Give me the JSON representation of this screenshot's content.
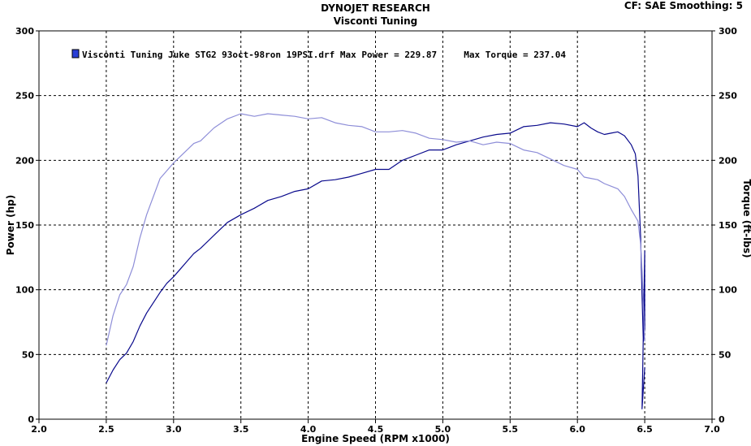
{
  "header": {
    "title": "DYNOJET RESEARCH",
    "subtitle": "Visconti Tuning",
    "settings": "CF: SAE   Smoothing: 5"
  },
  "chart_data": {
    "type": "line",
    "xlabel": "Engine Speed (RPM x1000)",
    "ylabel": "Power (hp)",
    "y2label": "Torque (ft-lbs)",
    "xlim": [
      2.0,
      7.0
    ],
    "ylim": [
      0,
      300
    ],
    "y2lim": [
      0,
      300
    ],
    "x_ticks": [
      "2.0",
      "2.5",
      "3.0",
      "3.5",
      "4.0",
      "4.5",
      "5.0",
      "5.5",
      "6.0",
      "6.5",
      "7.0"
    ],
    "y_ticks": [
      "0",
      "50",
      "100",
      "150",
      "200",
      "250",
      "300"
    ],
    "grid": true,
    "legend": {
      "text": "Visconti Tuning Juke STG2 93oct-98ron 19PSI.drf Max Power = 229.87     Max Torque = 237.04",
      "placement": "top-left",
      "swatch_color": "#2a3fd6"
    },
    "series": [
      {
        "key": "power",
        "color": "#0a0a8c",
        "axis": "left",
        "x": [
          2.5,
          2.55,
          2.6,
          2.65,
          2.7,
          2.75,
          2.8,
          2.9,
          2.95,
          3.0,
          3.05,
          3.1,
          3.15,
          3.2,
          3.3,
          3.4,
          3.5,
          3.6,
          3.7,
          3.8,
          3.9,
          4.0,
          4.1,
          4.2,
          4.3,
          4.4,
          4.5,
          4.6,
          4.7,
          4.8,
          4.9,
          5.0,
          5.1,
          5.2,
          5.3,
          5.4,
          5.5,
          5.6,
          5.7,
          5.8,
          5.9,
          6.0,
          6.05,
          6.1,
          6.15,
          6.2,
          6.25,
          6.3,
          6.35,
          6.4,
          6.43,
          6.45,
          6.47,
          6.48,
          6.49,
          6.5,
          6.5,
          6.48,
          6.5
        ],
        "values": [
          28,
          38,
          46,
          51,
          60,
          72,
          82,
          98,
          105,
          110,
          116,
          122,
          128,
          132,
          142,
          152,
          158,
          163,
          169,
          172,
          176,
          178,
          184,
          185,
          187,
          190,
          193,
          193,
          200,
          204,
          208,
          208,
          212,
          215,
          218,
          220,
          221,
          226,
          227,
          229,
          228,
          226,
          229,
          225,
          222,
          220,
          221,
          222,
          219,
          212,
          205,
          188,
          140,
          95,
          60,
          70,
          130,
          8,
          40
        ]
      },
      {
        "key": "torque",
        "color": "#8e8ed8",
        "axis": "right",
        "x": [
          2.5,
          2.55,
          2.6,
          2.65,
          2.7,
          2.75,
          2.8,
          2.85,
          2.9,
          2.95,
          3.0,
          3.05,
          3.1,
          3.15,
          3.2,
          3.3,
          3.4,
          3.5,
          3.6,
          3.7,
          3.8,
          3.9,
          4.0,
          4.1,
          4.2,
          4.3,
          4.4,
          4.5,
          4.6,
          4.7,
          4.8,
          4.9,
          5.0,
          5.1,
          5.2,
          5.3,
          5.4,
          5.5,
          5.6,
          5.7,
          5.8,
          5.9,
          6.0,
          6.05,
          6.1,
          6.15,
          6.2,
          6.25,
          6.3,
          6.35,
          6.4,
          6.45,
          6.47,
          6.48,
          6.49,
          6.5
        ],
        "values": [
          57,
          80,
          96,
          104,
          118,
          140,
          158,
          172,
          186,
          192,
          198,
          203,
          208,
          213,
          215,
          225,
          232,
          236,
          234,
          236,
          235,
          234,
          232,
          233,
          229,
          227,
          226,
          222,
          222,
          223,
          221,
          217,
          216,
          214,
          215,
          212,
          214,
          213,
          208,
          206,
          201,
          196,
          193,
          187,
          186,
          185,
          182,
          180,
          178,
          172,
          162,
          153,
          135,
          115,
          88,
          60
        ]
      }
    ]
  }
}
